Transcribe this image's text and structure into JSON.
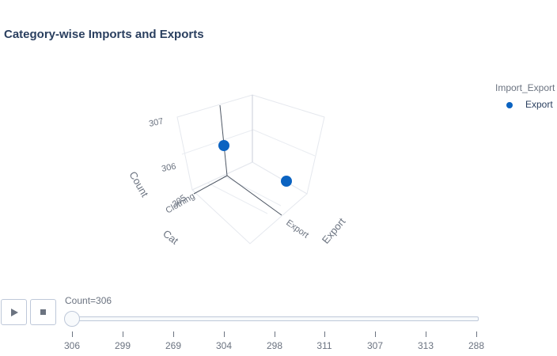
{
  "chart_data": {
    "type": "scatter3d",
    "title": "Category-wise Imports and Exports",
    "axes": {
      "x": {
        "title": "Export",
        "ticks": [
          "Export"
        ]
      },
      "y": {
        "title": "Cat",
        "ticks": [
          "Clothing"
        ]
      },
      "z": {
        "title": "Count",
        "ticks": [
          "305",
          "306",
          "307"
        ]
      }
    },
    "legend": {
      "title": "Import_Export",
      "placement": "right",
      "items": [
        {
          "label": "Export",
          "color": "#0b63c1"
        }
      ]
    },
    "points": [
      {
        "series": "Export",
        "x": "Export",
        "y": "Clothing",
        "z": 306
      },
      {
        "series": "Export",
        "x": "Export",
        "y": "Clothing",
        "z": 306
      }
    ]
  },
  "animation": {
    "current_label": "Count=306",
    "frames": [
      "306",
      "299",
      "269",
      "304",
      "298",
      "311",
      "307",
      "313",
      "288"
    ],
    "current_index": 0,
    "play_icon": "play-icon",
    "stop_icon": "stop-icon"
  }
}
